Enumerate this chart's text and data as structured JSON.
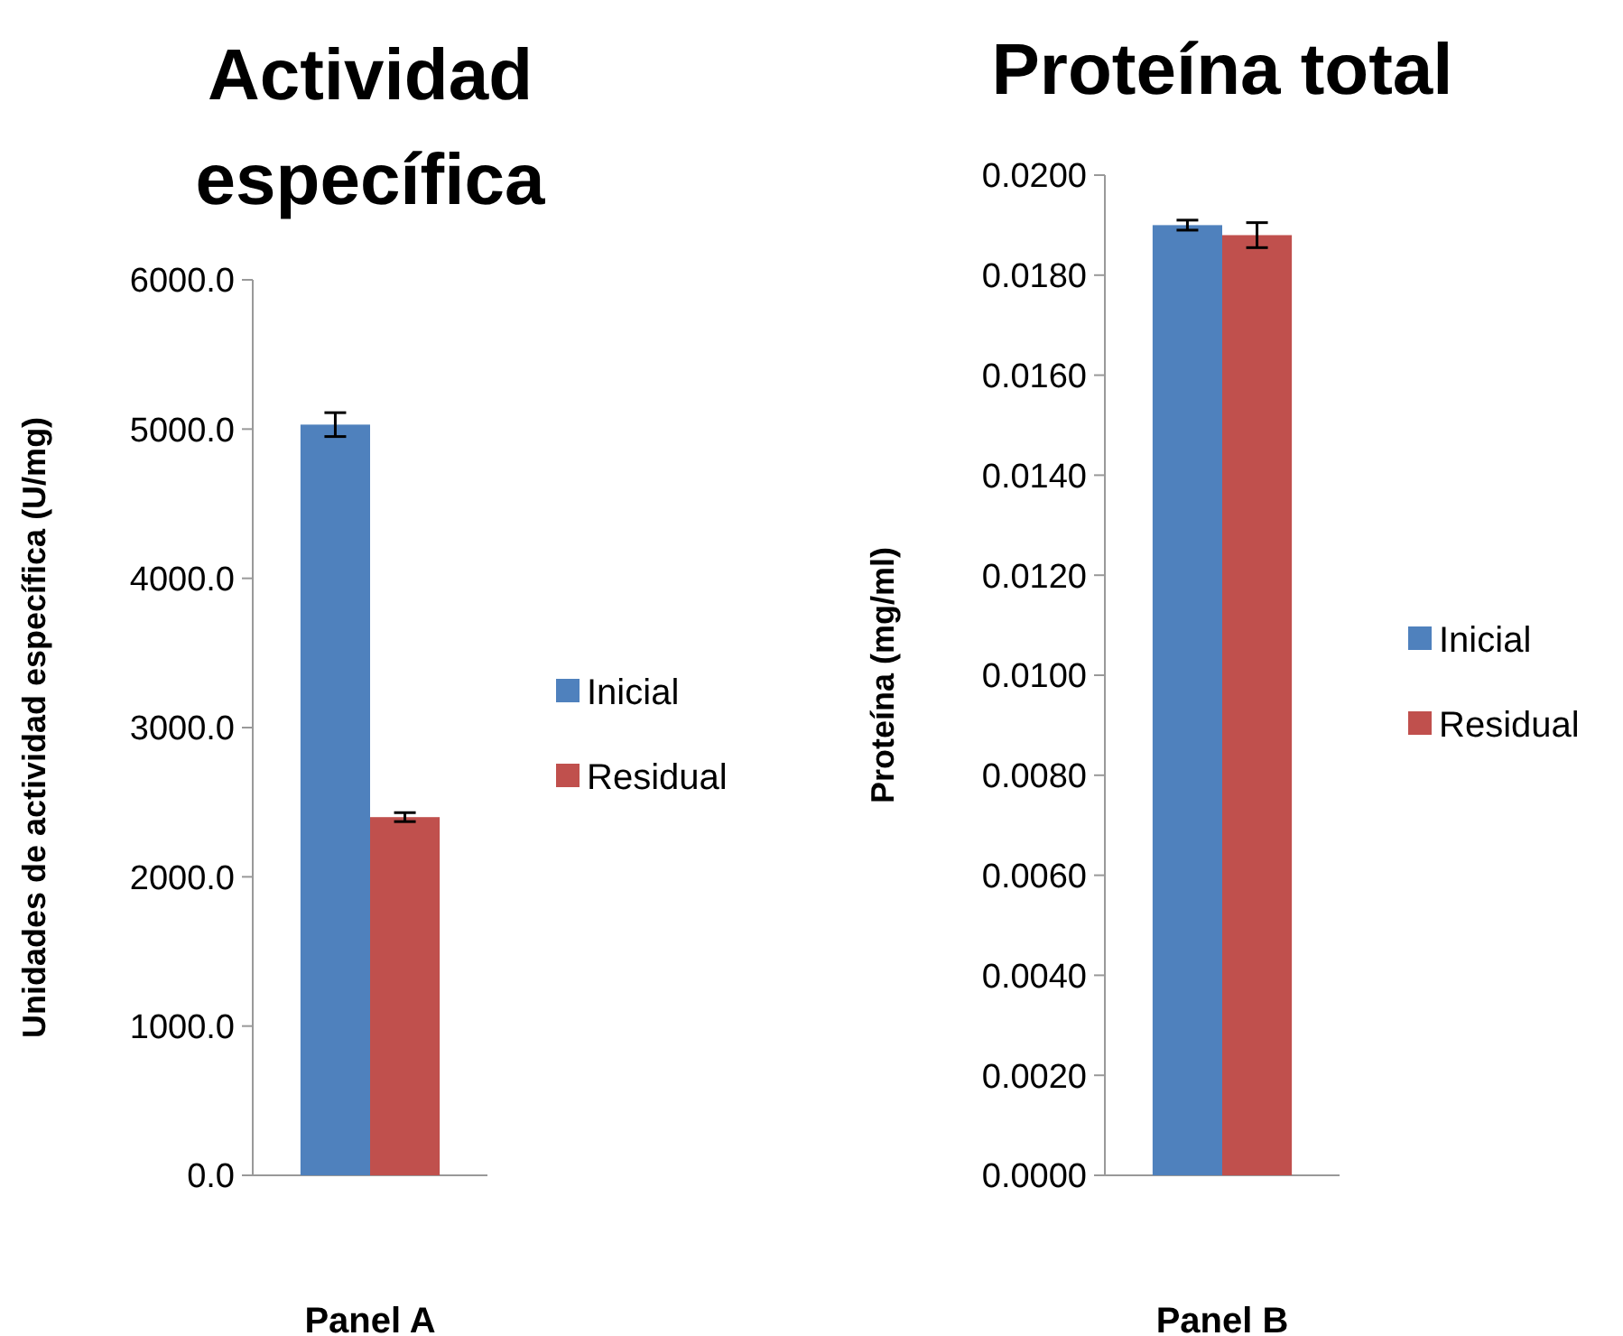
{
  "chart_data": [
    {
      "type": "bar",
      "title": "Actividad específica",
      "xlabel": "Panel A",
      "ylabel": "Unidades de actividad específica (U/mg)",
      "categories": [
        null
      ],
      "series": [
        {
          "name": "Inicial",
          "color": "#4f81bd",
          "values": [
            5030
          ],
          "errors": [
            80
          ]
        },
        {
          "name": "Residual",
          "color": "#c0504d",
          "values": [
            2400
          ],
          "errors": [
            30
          ]
        }
      ],
      "ylim": [
        0,
        6000
      ],
      "yticks": [
        {
          "value": 0,
          "label": "0.0"
        },
        {
          "value": 1000,
          "label": "1000.0"
        },
        {
          "value": 2000,
          "label": "2000.0"
        },
        {
          "value": 3000,
          "label": "3000.0"
        },
        {
          "value": 4000,
          "label": "4000.0"
        },
        {
          "value": 5000,
          "label": "5000.0"
        },
        {
          "value": 6000,
          "label": "6000.0"
        }
      ],
      "grid": false,
      "legend": "right"
    },
    {
      "type": "bar",
      "title": "Proteína total",
      "xlabel": "Panel B",
      "ylabel": "Proteína (mg/ml)",
      "categories": [
        null
      ],
      "series": [
        {
          "name": "Inicial",
          "color": "#4f81bd",
          "values": [
            0.019
          ],
          "errors": [
            0.0001
          ]
        },
        {
          "name": "Residual",
          "color": "#c0504d",
          "values": [
            0.0188
          ],
          "errors": [
            0.00025
          ]
        }
      ],
      "ylim": [
        0,
        0.02
      ],
      "yticks": [
        {
          "value": 0,
          "label": "0.0000"
        },
        {
          "value": 0.002,
          "label": "0.0020"
        },
        {
          "value": 0.004,
          "label": "0.0040"
        },
        {
          "value": 0.006,
          "label": "0.0060"
        },
        {
          "value": 0.008,
          "label": "0.0080"
        },
        {
          "value": 0.01,
          "label": "0.0100"
        },
        {
          "value": 0.012,
          "label": "0.0120"
        },
        {
          "value": 0.014,
          "label": "0.0140"
        },
        {
          "value": 0.016,
          "label": "0.0160"
        },
        {
          "value": 0.018,
          "label": "0.0180"
        },
        {
          "value": 0.02,
          "label": "0.0200"
        }
      ],
      "grid": false,
      "legend": "right"
    }
  ]
}
